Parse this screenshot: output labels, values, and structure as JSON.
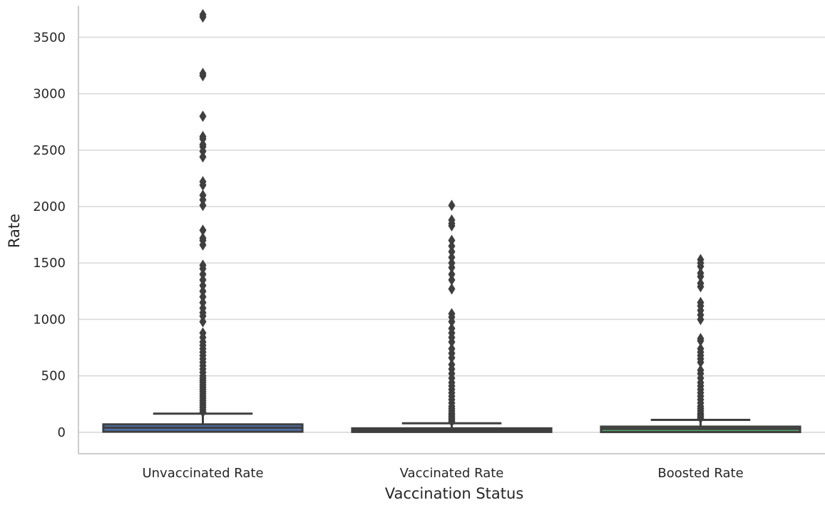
{
  "chart_data": {
    "type": "box",
    "xlabel": "Vaccination Status",
    "ylabel": "Rate",
    "ylim": [
      -190,
      3780
    ],
    "yticks": [
      0,
      500,
      1000,
      1500,
      2000,
      2500,
      3000,
      3500
    ],
    "grid": "horizontal",
    "categories": [
      "Unvaccinated Rate",
      "Vaccinated Rate",
      "Boosted Rate"
    ],
    "colors": {
      "box_fills": [
        "#4c72b0",
        "#dd8452",
        "#55a868"
      ],
      "lines": "#3f3f3f",
      "grid": "#d9d9d9",
      "spine": "#cccccc"
    },
    "boxes": [
      {
        "category": "Unvaccinated Rate",
        "q1": 5,
        "median": 40,
        "q3": 70,
        "whisker_low": 0,
        "whisker_high": 165,
        "outliers": [
          180,
          200,
          220,
          240,
          260,
          280,
          300,
          320,
          340,
          360,
          380,
          400,
          420,
          440,
          460,
          480,
          500,
          530,
          560,
          590,
          620,
          650,
          680,
          710,
          740,
          770,
          800,
          840,
          880,
          980,
          1030,
          1060,
          1100,
          1150,
          1200,
          1250,
          1300,
          1350,
          1400,
          1450,
          1480,
          1660,
          1700,
          1720,
          1790,
          2010,
          2060,
          2100,
          2190,
          2220,
          2440,
          2490,
          2530,
          2550,
          2600,
          2620,
          2800,
          3160,
          3180,
          3680,
          3700
        ]
      },
      {
        "category": "Vaccinated Rate",
        "q1": 3,
        "median": 20,
        "q3": 35,
        "whisker_low": 0,
        "whisker_high": 80,
        "outliers": [
          95,
          110,
          125,
          140,
          155,
          170,
          190,
          210,
          230,
          260,
          290,
          320,
          350,
          380,
          410,
          440,
          480,
          520,
          560,
          600,
          660,
          700,
          740,
          800,
          840,
          880,
          920,
          980,
          1020,
          1050,
          1270,
          1350,
          1400,
          1460,
          1500,
          1550,
          1600,
          1650,
          1700,
          1830,
          1850,
          1880,
          2010
        ]
      },
      {
        "category": "Boosted Rate",
        "q1": 2,
        "median": 30,
        "q3": 50,
        "whisker_low": 0,
        "whisker_high": 110,
        "outliers": [
          125,
          140,
          155,
          170,
          190,
          210,
          230,
          260,
          290,
          320,
          350,
          380,
          410,
          440,
          480,
          520,
          550,
          620,
          650,
          680,
          710,
          740,
          810,
          830,
          1000,
          1040,
          1080,
          1120,
          1150,
          1290,
          1320,
          1380,
          1410,
          1470,
          1500,
          1530
        ]
      }
    ]
  }
}
